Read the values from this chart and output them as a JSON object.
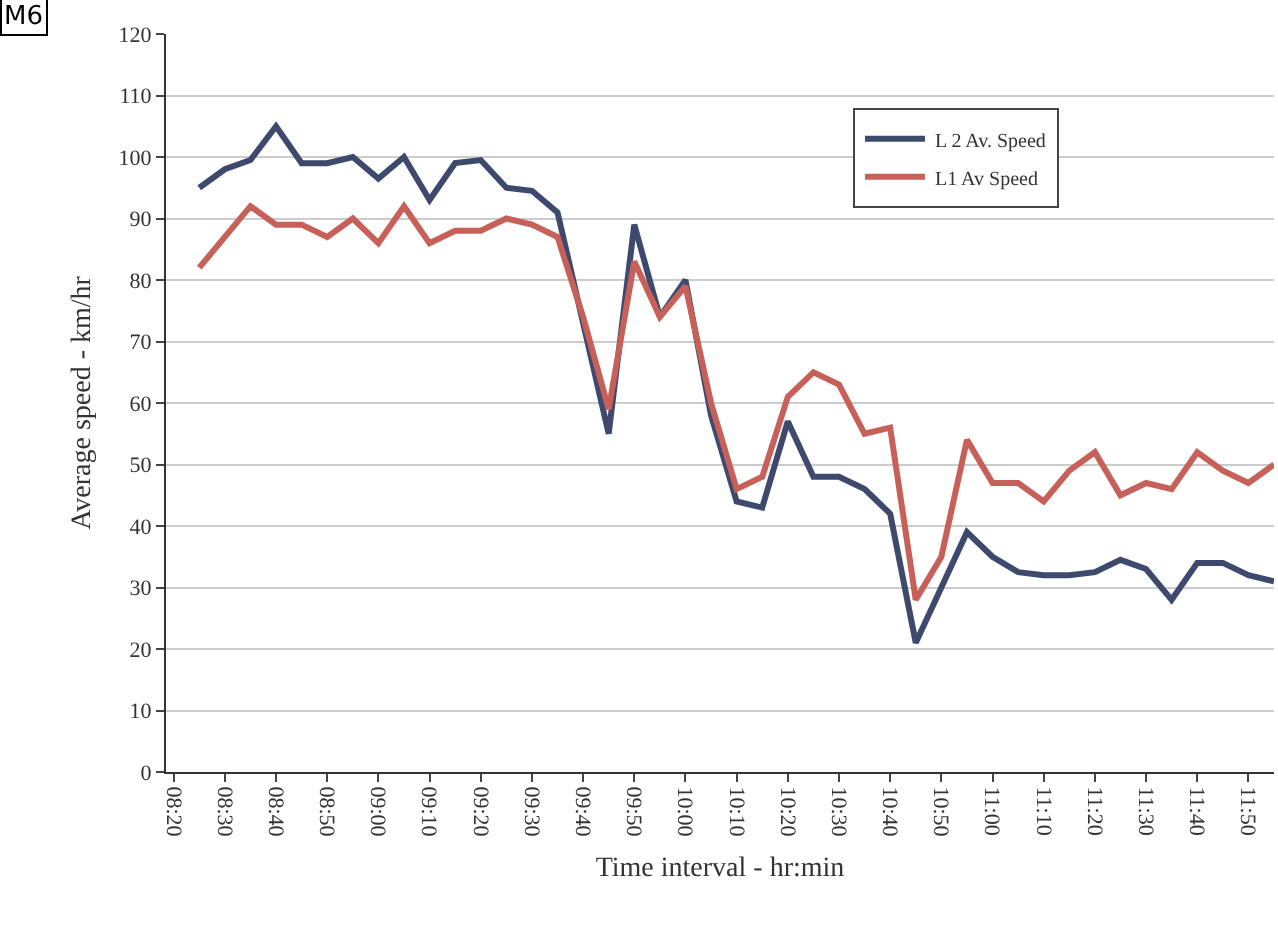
{
  "chart_data": {
    "type": "line",
    "xlabel": "Time interval - hr:min",
    "ylabel": "Average speed - km/hr",
    "annotations": [
      "M6"
    ],
    "categories": [
      "08:20",
      null,
      "08:30",
      null,
      "08:40",
      null,
      "08:50",
      null,
      "09:00",
      null,
      "09:10",
      null,
      "09:20",
      null,
      "09:30",
      null,
      "09:40",
      null,
      "09:50",
      null,
      "10:00",
      null,
      "10:10",
      null,
      "10:20",
      null,
      "10:30",
      null,
      "10:40",
      null,
      "10:50",
      null,
      "11:00",
      null,
      "11:10",
      null,
      "11:20",
      null,
      "11:30",
      null,
      "11:40",
      null,
      "11:50",
      null
    ],
    "series": [
      {
        "name": "L 2 Av. Speed",
        "color": "#3d4a6e",
        "values": [
          null,
          95,
          98,
          99.5,
          105,
          99,
          99,
          100,
          96.5,
          100,
          93,
          99,
          99.5,
          95,
          94.5,
          91,
          73,
          55,
          89,
          74,
          80,
          58,
          44,
          43,
          57,
          48,
          48,
          46,
          42,
          21,
          30,
          39,
          35,
          32.5,
          32,
          32,
          32.5,
          34.5,
          33,
          28,
          34,
          34,
          32,
          31
        ]
      },
      {
        "name": "L1 Av Speed",
        "color": "#c8605a",
        "values": [
          null,
          82,
          87,
          92,
          89,
          89,
          87,
          90,
          86,
          92,
          86,
          88,
          88,
          90,
          89,
          87,
          74,
          59,
          83,
          74,
          79,
          60,
          46,
          48,
          61,
          65,
          63,
          55,
          56,
          28,
          35,
          54,
          47,
          47,
          44,
          49,
          52,
          45,
          47,
          46,
          52,
          49,
          47,
          50
        ]
      }
    ],
    "ylim": [
      0,
      120
    ],
    "yticks": [
      0,
      10,
      20,
      30,
      40,
      50,
      60,
      70,
      80,
      90,
      100,
      110,
      120
    ],
    "grid": "y",
    "legend": "top right",
    "marker": "none",
    "line_style": "solid"
  }
}
